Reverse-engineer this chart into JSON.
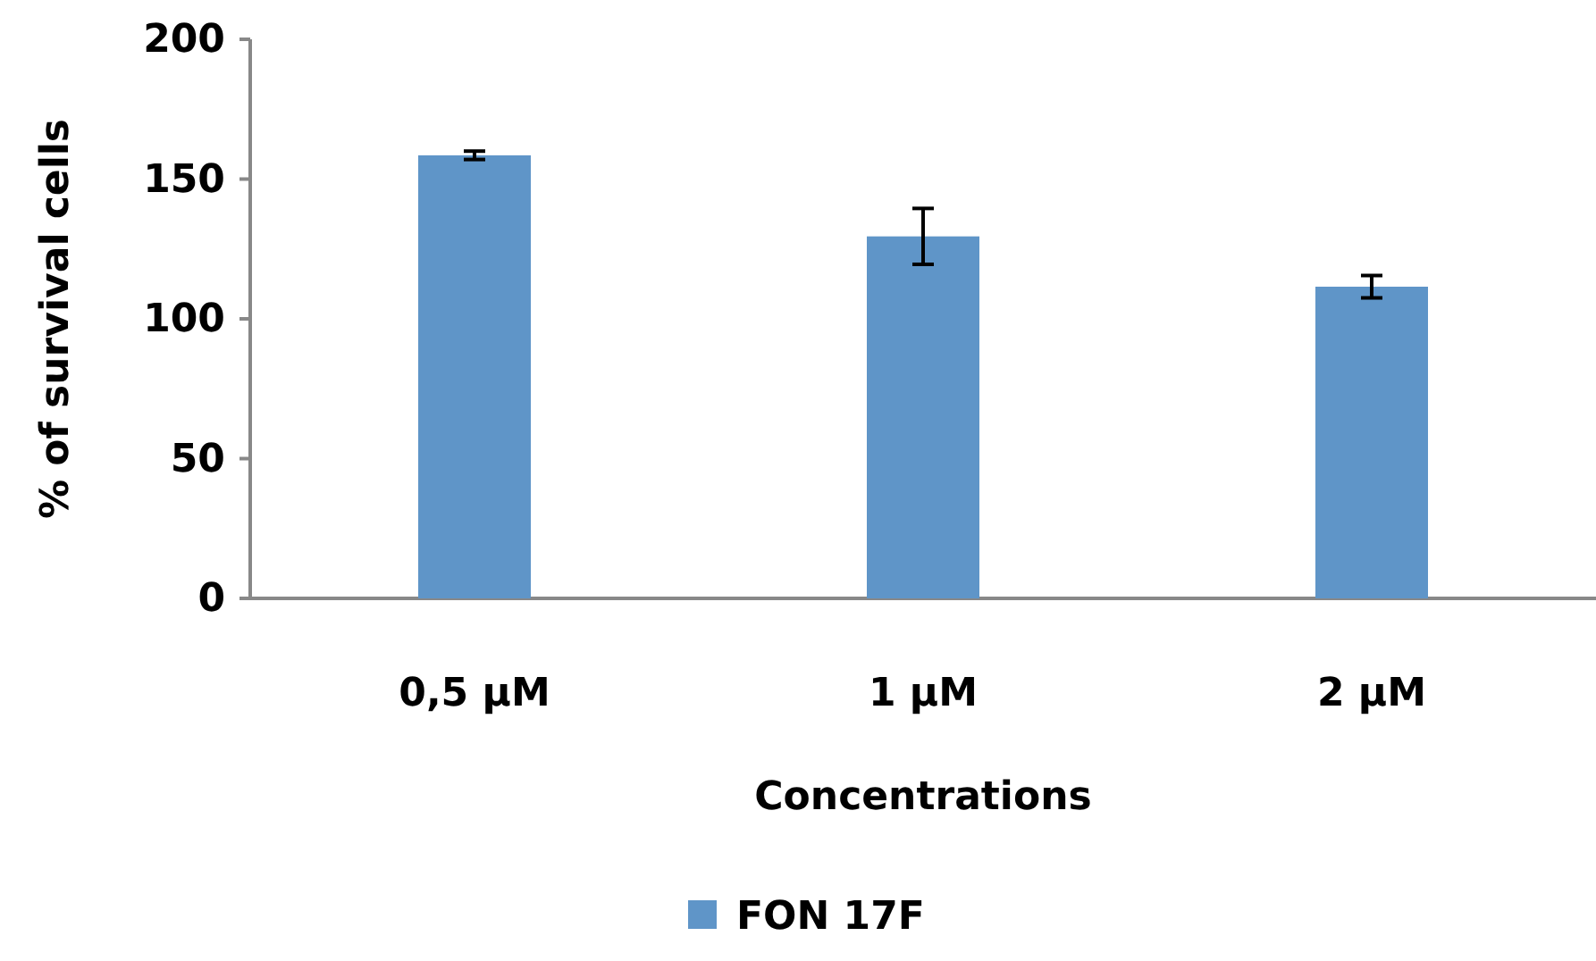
{
  "chart_data": {
    "type": "bar",
    "xlabel": "Concentrations",
    "ylabel": "% of survival cells",
    "categories": [
      "0,5 µM",
      "1 µM",
      "2 µM"
    ],
    "series": [
      {
        "name": "FON 17F",
        "color": "#5f95c8",
        "values": [
          158.5,
          129.5,
          111.5
        ],
        "errors": [
          1.5,
          10,
          4
        ]
      }
    ],
    "ylim": [
      0,
      200
    ],
    "yticks": [
      0,
      50,
      100,
      150,
      200
    ],
    "grid": false,
    "legend": "bottom"
  }
}
